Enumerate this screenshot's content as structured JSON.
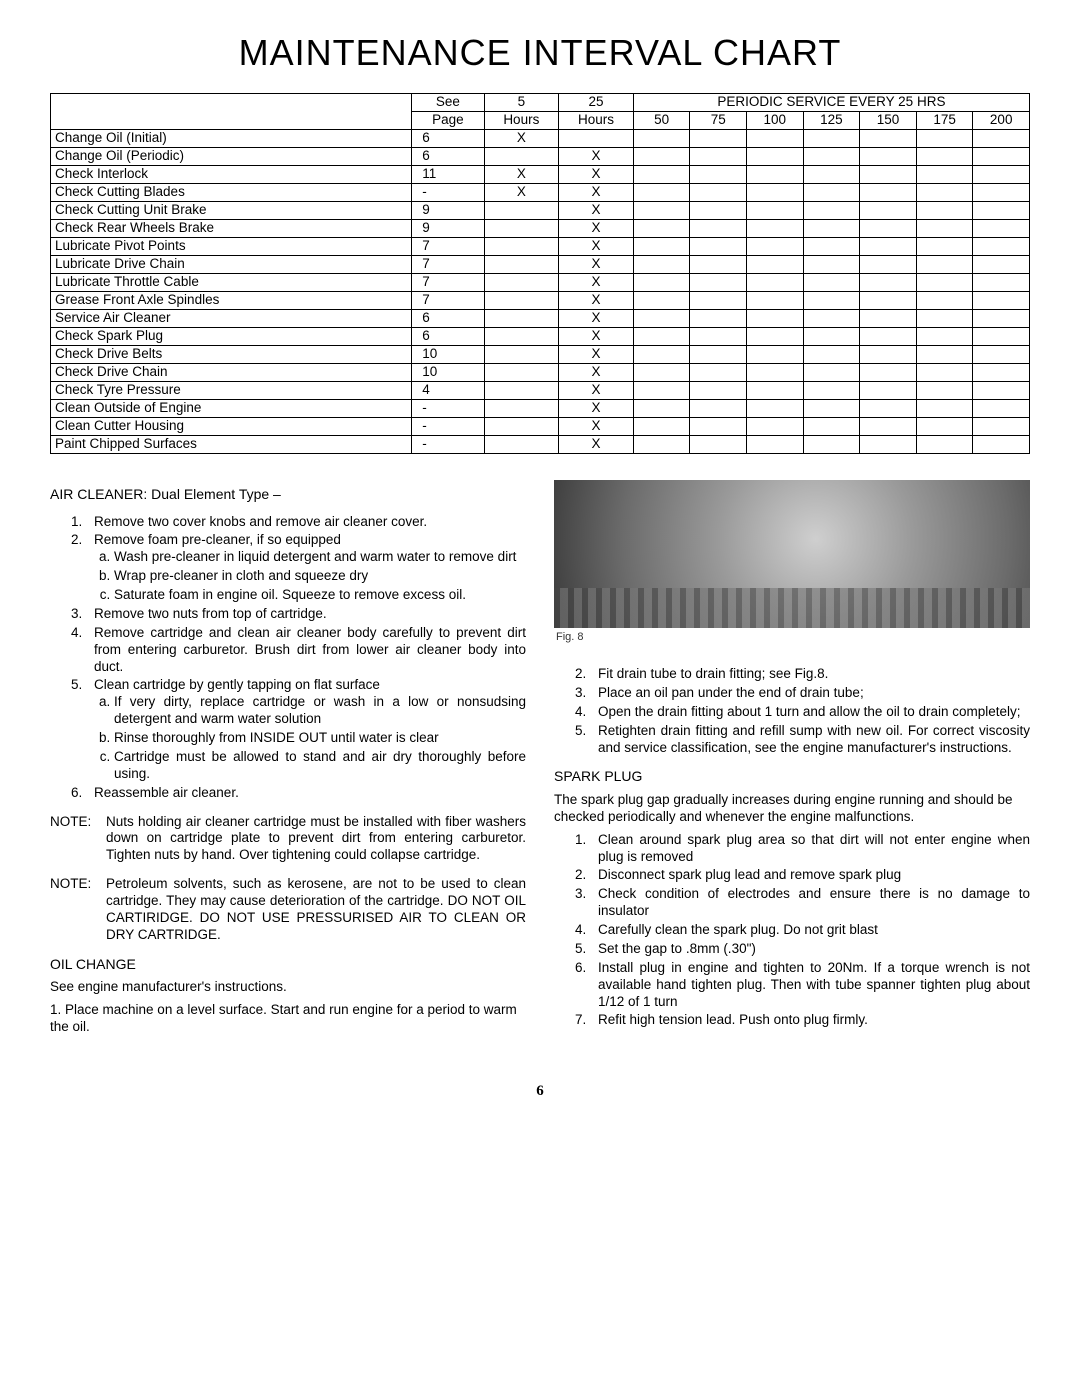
{
  "page": {
    "title": "MAINTENANCE INTERVAL CHART",
    "number": "6"
  },
  "chart": {
    "header": {
      "see_page_top": "See",
      "see_page_bot": "Page",
      "h5_top": "5",
      "h5_bot": "Hours",
      "h25_top": "25",
      "h25_bot": "Hours",
      "periodic_label": "PERIODIC SERVICE EVERY 25 HRS",
      "periodic_cols": [
        "50",
        "75",
        "100",
        "125",
        "150",
        "175",
        "200"
      ]
    },
    "rows": [
      {
        "task": "Change Oil (Initial)",
        "page": "6",
        "h5": "X",
        "h25": ""
      },
      {
        "task": "Change Oil (Periodic)",
        "page": "6",
        "h5": "",
        "h25": "X"
      },
      {
        "task": "Check Interlock",
        "page": "11",
        "h5": "X",
        "h25": "X"
      },
      {
        "task": "Check Cutting Blades",
        "page": "-",
        "h5": "X",
        "h25": "X"
      },
      {
        "task": "Check Cutting Unit Brake",
        "page": "9",
        "h5": "",
        "h25": "X"
      },
      {
        "task": "Check Rear Wheels Brake",
        "page": "9",
        "h5": "",
        "h25": "X"
      },
      {
        "task": "Lubricate Pivot Points",
        "page": "7",
        "h5": "",
        "h25": "X"
      },
      {
        "task": "Lubricate Drive Chain",
        "page": "7",
        "h5": "",
        "h25": "X"
      },
      {
        "task": "Lubricate Throttle Cable",
        "page": "7",
        "h5": "",
        "h25": "X"
      },
      {
        "task": "Grease Front Axle Spindles",
        "page": "7",
        "h5": "",
        "h25": "X"
      },
      {
        "task": "Service Air Cleaner",
        "page": "6",
        "h5": "",
        "h25": "X"
      },
      {
        "task": "Check Spark Plug",
        "page": "6",
        "h5": "",
        "h25": "X"
      },
      {
        "task": "Check Drive Belts",
        "page": "10",
        "h5": "",
        "h25": "X"
      },
      {
        "task": "Check Drive Chain",
        "page": "10",
        "h5": "",
        "h25": "X"
      },
      {
        "task": "Check Tyre Pressure",
        "page": "4",
        "h5": "",
        "h25": "X"
      },
      {
        "task": "Clean Outside of Engine",
        "page": "-",
        "h5": "",
        "h25": "X"
      },
      {
        "task": "Clean Cutter Housing",
        "page": "-",
        "h5": "",
        "h25": "X"
      },
      {
        "task": "Paint Chipped Surfaces",
        "page": "-",
        "h5": "",
        "h25": "X"
      }
    ]
  },
  "left": {
    "air_cleaner_title": "AIR CLEANER:  Dual Element Type –",
    "air_steps": {
      "s1": "Remove two cover knobs and remove air cleaner cover.",
      "s2": "Remove foam pre-cleaner, if so equipped",
      "s2a": "Wash pre-cleaner in liquid detergent and warm water to remove dirt",
      "s2b": "Wrap pre-cleaner in cloth and squeeze dry",
      "s2c": "Saturate foam in engine oil.  Squeeze to remove excess oil.",
      "s3": "Remove two nuts from top of cartridge.",
      "s4": "Remove cartridge and clean air cleaner body carefully to prevent dirt from entering carburetor.  Brush dirt from lower air cleaner body into duct.",
      "s5": "Clean cartridge by gently tapping on flat surface",
      "s5a": "If very dirty, replace cartridge or wash in a low or nonsudsing detergent and warm water solution",
      "s5b": "Rinse thoroughly from INSIDE OUT until water is clear",
      "s5c": "Cartridge must be allowed to stand and air dry thoroughly before using.",
      "s6": "Reassemble air cleaner."
    },
    "note1_label": "NOTE:",
    "note1_body": "Nuts holding air cleaner cartridge must be installed with fiber washers down on cartridge plate to prevent dirt from entering carburetor.  Tighten nuts by hand.  Over tightening could collapse cartridge.",
    "note2_label": "NOTE:",
    "note2_body": "Petroleum solvents, such as kerosene, are not to be used to clean cartridge.   They may cause deterioration of the cartridge.   DO NOT OIL CARTIRIDGE.   DO NOT USE PRESSURISED AIR TO CLEAN OR DRY CARTRIDGE.",
    "oil_title": "OIL CHANGE",
    "oil_intro": "See engine manufacturer's instructions.",
    "oil_s1": "1.    Place machine on a level surface. Start and run engine for a period to warm the oil."
  },
  "right": {
    "fig_caption": "Fig. 8",
    "oil_steps": {
      "s2": "Fit drain tube to drain fitting; see Fig.8.",
      "s3": "Place an oil pan under the end of drain tube;",
      "s4": "Open the drain fitting about 1 turn and allow the oil to drain completely;",
      "s5": "Retighten drain fitting and refill sump with new oil.  For correct viscosity and service classification, see the engine manufacturer's instructions."
    },
    "spark_title": "SPARK PLUG",
    "spark_intro": "The spark plug gap gradually increases during engine running and should be checked periodically and whenever the engine malfunctions.",
    "spark_steps": {
      "s1": "Clean around spark plug area so that dirt will not enter engine when plug is removed",
      "s2": "Disconnect spark plug lead and remove spark plug",
      "s3": "Check condition of electrodes and ensure there is no damage to insulator",
      "s4": "Carefully clean the spark plug.  Do not grit blast",
      "s5": "Set the gap to .8mm (.30\")",
      "s6": "Install plug in engine and tighten to 20Nm.  If a torque wrench is not available hand tighten plug. Then with tube spanner tighten plug about 1/12 of 1 turn",
      "s7": "Refit high tension lead.  Push onto plug firmly."
    }
  }
}
